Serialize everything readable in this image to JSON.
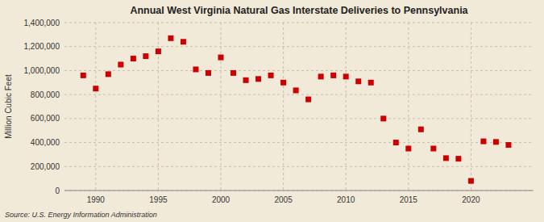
{
  "chart_data": {
    "type": "scatter",
    "title": "Annual West Virginia Natural Gas Interstate Deliveries to Pennsylvania",
    "ylabel": "Million Cubic Feet",
    "source": "Source: U.S. Energy Information Administration",
    "color": "#cc0000",
    "marker": "square",
    "grid": true,
    "xlim": [
      1987.5,
      2025
    ],
    "ylim": [
      0,
      1400000
    ],
    "xticks": [
      1990,
      1995,
      2000,
      2005,
      2010,
      2015,
      2020
    ],
    "yticks": [
      0,
      {
        "value": 200000,
        "label": "200,000"
      },
      {
        "value": 400000,
        "label": "400,000"
      },
      {
        "value": 600000,
        "label": "600,000"
      },
      {
        "value": 800000,
        "label": "800,000"
      },
      {
        "value": 1000000,
        "label": "1,000,000"
      },
      {
        "value": 1200000,
        "label": "1,200,000"
      },
      {
        "value": 1400000,
        "label": "1,400,000"
      }
    ],
    "x": [
      1989,
      1990,
      1991,
      1992,
      1993,
      1994,
      1995,
      1996,
      1997,
      1998,
      1999,
      2000,
      2001,
      2002,
      2003,
      2004,
      2005,
      2006,
      2007,
      2008,
      2009,
      2010,
      2011,
      2012,
      2013,
      2014,
      2015,
      2016,
      2017,
      2018,
      2019,
      2020,
      2021,
      2022,
      2023
    ],
    "values": [
      960000,
      850000,
      970000,
      1050000,
      1100000,
      1120000,
      1160000,
      1270000,
      1240000,
      1010000,
      980000,
      1110000,
      980000,
      920000,
      930000,
      960000,
      900000,
      835000,
      760000,
      950000,
      960000,
      950000,
      910000,
      900000,
      600000,
      400000,
      350000,
      510000,
      350000,
      270000,
      265000,
      80000,
      410000,
      405000,
      380000
    ]
  }
}
